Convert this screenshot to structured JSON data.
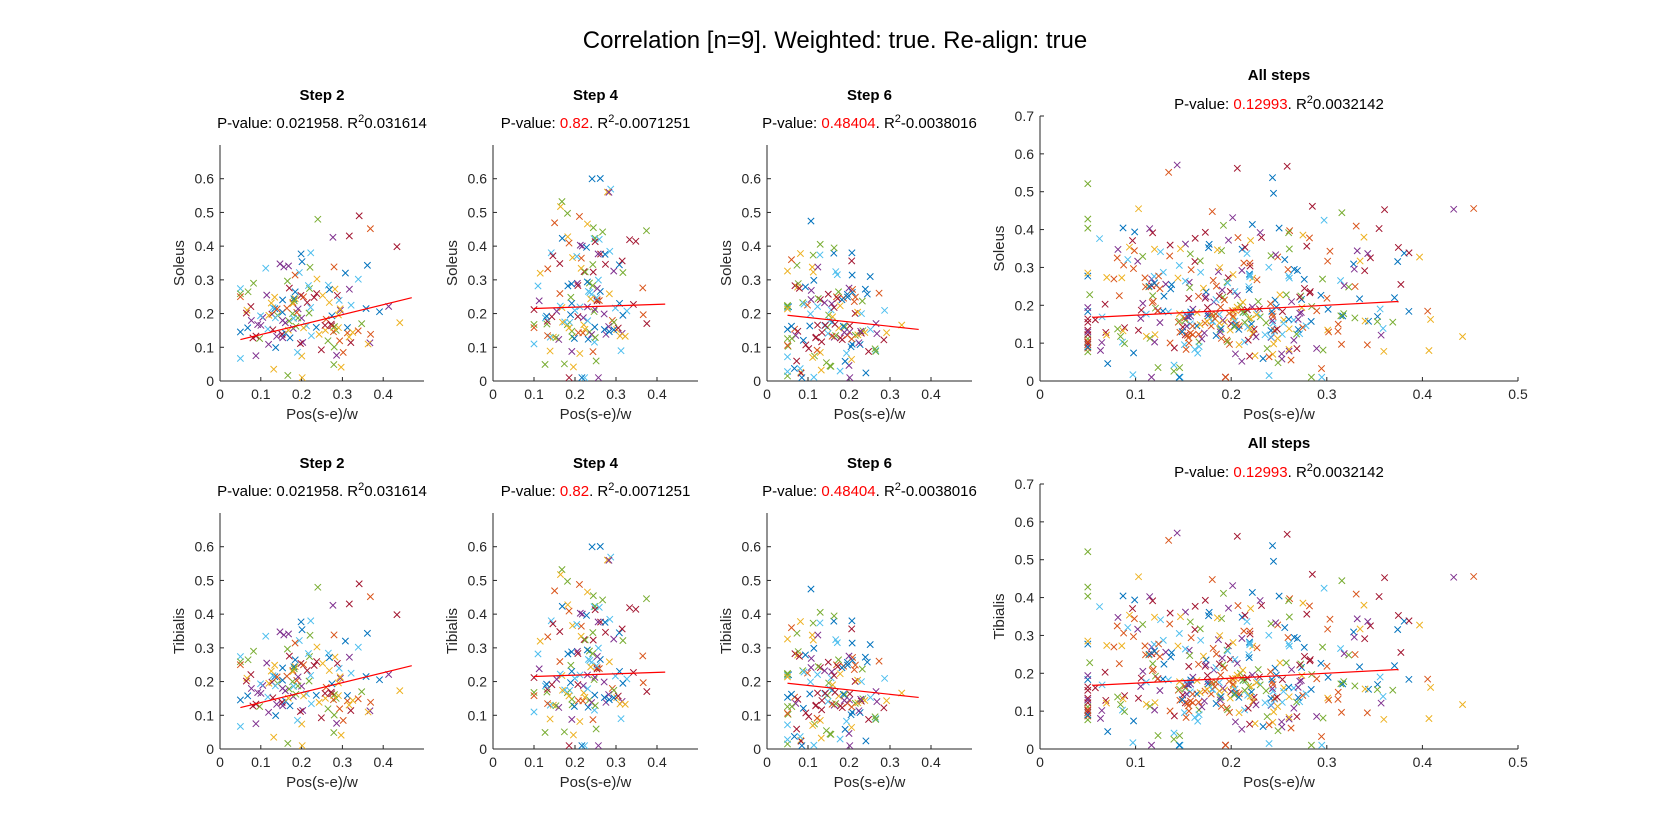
{
  "figure": {
    "title": "Correlation [n=9]. Weighted: true. Re-align: true"
  },
  "colors": {
    "series": [
      "#0072BD",
      "#D95319",
      "#EDB120",
      "#7E2F8E",
      "#77AC30",
      "#4DBEEE",
      "#A2142F"
    ],
    "fit_line": "#FF0000",
    "pvalue_highlight": "#FF0000",
    "pvalue_normal": "#000000"
  },
  "chart_data": [
    {
      "type": "scatter",
      "title": "Step 2",
      "xlabel": "Pos(s-e)/w",
      "ylabel": "Soleus",
      "pvalue_prefix": "P-value:",
      "pvalue": "0.021958",
      "pvalue_significant": true,
      "r2_prefix": ". R",
      "r2_sup": "2",
      "r2": "0.031614",
      "xlim": [
        0,
        0.5
      ],
      "ylim": [
        0,
        0.7
      ],
      "xticks": [
        "0",
        "0.1",
        "0.2",
        "0.3",
        "0.4"
      ],
      "xtick_values": [
        0,
        0.1,
        0.2,
        0.3,
        0.4
      ],
      "yticks": [
        "0",
        "0.1",
        "0.2",
        "0.3",
        "0.4",
        "0.5",
        "0.6"
      ],
      "ytick_values": [
        0,
        0.1,
        0.2,
        0.3,
        0.4,
        0.5,
        0.6
      ],
      "fit": {
        "x": [
          0.05,
          0.47
        ],
        "y": [
          0.123,
          0.247
        ]
      },
      "seed": 11,
      "x_range": [
        0.05,
        0.47
      ],
      "y_range": [
        0.01,
        0.51
      ],
      "x_center": 0.22,
      "y_center": 0.18
    },
    {
      "type": "scatter",
      "title": "Step 4",
      "xlabel": "Pos(s-e)/w",
      "ylabel": "Soleus",
      "pvalue_prefix": "P-value:",
      "pvalue": "0.82",
      "pvalue_significant": false,
      "r2_prefix": ". R",
      "r2_sup": "2",
      "r2": "-0.0071251",
      "xlim": [
        0,
        0.5
      ],
      "ylim": [
        0,
        0.7
      ],
      "xticks": [
        "0",
        "0.1",
        "0.2",
        "0.3",
        "0.4"
      ],
      "xtick_values": [
        0,
        0.1,
        0.2,
        0.3,
        0.4
      ],
      "yticks": [
        "0",
        "0.1",
        "0.2",
        "0.3",
        "0.4",
        "0.5",
        "0.6"
      ],
      "ytick_values": [
        0,
        0.1,
        0.2,
        0.3,
        0.4,
        0.5,
        0.6
      ],
      "fit": {
        "x": [
          0.1,
          0.42
        ],
        "y": [
          0.215,
          0.228
        ]
      },
      "seed": 23,
      "x_range": [
        0.1,
        0.42
      ],
      "y_range": [
        0.01,
        0.7
      ],
      "x_center": 0.22,
      "y_center": 0.22
    },
    {
      "type": "scatter",
      "title": "Step 6",
      "xlabel": "Pos(s-e)/w",
      "ylabel": "Soleus",
      "pvalue_prefix": "P-value:",
      "pvalue": "0.48404",
      "pvalue_significant": false,
      "r2_prefix": ". R",
      "r2_sup": "2",
      "r2": "-0.0038016",
      "xlim": [
        0,
        0.5
      ],
      "ylim": [
        0,
        0.7
      ],
      "xticks": [
        "0",
        "0.1",
        "0.2",
        "0.3",
        "0.4"
      ],
      "xtick_values": [
        0,
        0.1,
        0.2,
        0.3,
        0.4
      ],
      "yticks": [
        "0",
        "0.1",
        "0.2",
        "0.3",
        "0.4",
        "0.5",
        "0.6"
      ],
      "ytick_values": [
        0,
        0.1,
        0.2,
        0.3,
        0.4,
        0.5,
        0.6
      ],
      "fit": {
        "x": [
          0.05,
          0.37
        ],
        "y": [
          0.195,
          0.153
        ]
      },
      "seed": 37,
      "x_range": [
        0.05,
        0.37
      ],
      "y_range": [
        0.01,
        0.59
      ],
      "x_center": 0.16,
      "y_center": 0.17
    },
    {
      "type": "scatter",
      "title": "All steps",
      "xlabel": "Pos(s-e)/w",
      "ylabel": "Soleus",
      "pvalue_prefix": "P-value:",
      "pvalue": "0.12993",
      "pvalue_significant": false,
      "r2_prefix": ". R",
      "r2_sup": "2",
      "r2": "0.0032142",
      "xlim": [
        0,
        0.5
      ],
      "ylim": [
        0,
        0.7
      ],
      "xticks": [
        "0",
        "0.1",
        "0.2",
        "0.3",
        "0.4",
        "0.5"
      ],
      "xtick_values": [
        0,
        0.1,
        0.2,
        0.3,
        0.4,
        0.5
      ],
      "yticks": [
        "0",
        "0.1",
        "0.2",
        "0.3",
        "0.4",
        "0.5",
        "0.6",
        "0.7"
      ],
      "ytick_values": [
        0,
        0.1,
        0.2,
        0.3,
        0.4,
        0.5,
        0.6,
        0.7
      ],
      "fit": {
        "x": [
          0.055,
          0.375
        ],
        "y": [
          0.168,
          0.21
        ]
      },
      "seed": 53,
      "x_range": [
        0.05,
        0.47
      ],
      "y_range": [
        0.01,
        0.7
      ],
      "x_center": 0.2,
      "y_center": 0.19
    },
    {
      "type": "scatter",
      "title": "Step 2",
      "xlabel": "Pos(s-e)/w",
      "ylabel": "Tibialis",
      "pvalue_prefix": "P-value:",
      "pvalue": "0.021958",
      "pvalue_significant": true,
      "r2_prefix": ". R",
      "r2_sup": "2",
      "r2": "0.031614",
      "xlim": [
        0,
        0.5
      ],
      "ylim": [
        0,
        0.7
      ],
      "xticks": [
        "0",
        "0.1",
        "0.2",
        "0.3",
        "0.4"
      ],
      "xtick_values": [
        0,
        0.1,
        0.2,
        0.3,
        0.4
      ],
      "yticks": [
        "0",
        "0.1",
        "0.2",
        "0.3",
        "0.4",
        "0.5",
        "0.6"
      ],
      "ytick_values": [
        0,
        0.1,
        0.2,
        0.3,
        0.4,
        0.5,
        0.6
      ],
      "fit": {
        "x": [
          0.05,
          0.47
        ],
        "y": [
          0.123,
          0.247
        ]
      },
      "seed": 11,
      "x_range": [
        0.05,
        0.47
      ],
      "y_range": [
        0.01,
        0.51
      ],
      "x_center": 0.22,
      "y_center": 0.18
    },
    {
      "type": "scatter",
      "title": "Step 4",
      "xlabel": "Pos(s-e)/w",
      "ylabel": "Tibialis",
      "pvalue_prefix": "P-value:",
      "pvalue": "0.82",
      "pvalue_significant": false,
      "r2_prefix": ". R",
      "r2_sup": "2",
      "r2": "-0.0071251",
      "xlim": [
        0,
        0.5
      ],
      "ylim": [
        0,
        0.7
      ],
      "xticks": [
        "0",
        "0.1",
        "0.2",
        "0.3",
        "0.4"
      ],
      "xtick_values": [
        0,
        0.1,
        0.2,
        0.3,
        0.4
      ],
      "yticks": [
        "0",
        "0.1",
        "0.2",
        "0.3",
        "0.4",
        "0.5",
        "0.6"
      ],
      "ytick_values": [
        0,
        0.1,
        0.2,
        0.3,
        0.4,
        0.5,
        0.6
      ],
      "fit": {
        "x": [
          0.1,
          0.42
        ],
        "y": [
          0.215,
          0.228
        ]
      },
      "seed": 23,
      "x_range": [
        0.1,
        0.42
      ],
      "y_range": [
        0.01,
        0.7
      ],
      "x_center": 0.22,
      "y_center": 0.22
    },
    {
      "type": "scatter",
      "title": "Step 6",
      "xlabel": "Pos(s-e)/w",
      "ylabel": "Tibialis",
      "pvalue_prefix": "P-value:",
      "pvalue": "0.48404",
      "pvalue_significant": false,
      "r2_prefix": ". R",
      "r2_sup": "2",
      "r2": "-0.0038016",
      "xlim": [
        0,
        0.5
      ],
      "ylim": [
        0,
        0.7
      ],
      "xticks": [
        "0",
        "0.1",
        "0.2",
        "0.3",
        "0.4"
      ],
      "xtick_values": [
        0,
        0.1,
        0.2,
        0.3,
        0.4
      ],
      "yticks": [
        "0",
        "0.1",
        "0.2",
        "0.3",
        "0.4",
        "0.5",
        "0.6"
      ],
      "ytick_values": [
        0,
        0.1,
        0.2,
        0.3,
        0.4,
        0.5,
        0.6
      ],
      "fit": {
        "x": [
          0.05,
          0.37
        ],
        "y": [
          0.195,
          0.153
        ]
      },
      "seed": 37,
      "x_range": [
        0.05,
        0.37
      ],
      "y_range": [
        0.01,
        0.59
      ],
      "x_center": 0.16,
      "y_center": 0.17
    },
    {
      "type": "scatter",
      "title": "All steps",
      "xlabel": "Pos(s-e)/w",
      "ylabel": "Tibialis",
      "pvalue_prefix": "P-value:",
      "pvalue": "0.12993",
      "pvalue_significant": false,
      "r2_prefix": ". R",
      "r2_sup": "2",
      "r2": "0.0032142",
      "xlim": [
        0,
        0.5
      ],
      "ylim": [
        0,
        0.7
      ],
      "xticks": [
        "0",
        "0.1",
        "0.2",
        "0.3",
        "0.4",
        "0.5"
      ],
      "xtick_values": [
        0,
        0.1,
        0.2,
        0.3,
        0.4,
        0.5
      ],
      "yticks": [
        "0",
        "0.1",
        "0.2",
        "0.3",
        "0.4",
        "0.5",
        "0.6",
        "0.7"
      ],
      "ytick_values": [
        0,
        0.1,
        0.2,
        0.3,
        0.4,
        0.5,
        0.6,
        0.7
      ],
      "fit": {
        "x": [
          0.055,
          0.375
        ],
        "y": [
          0.168,
          0.21
        ]
      },
      "seed": 53,
      "x_range": [
        0.05,
        0.47
      ],
      "y_range": [
        0.01,
        0.7
      ],
      "x_center": 0.2,
      "y_center": 0.19
    }
  ]
}
